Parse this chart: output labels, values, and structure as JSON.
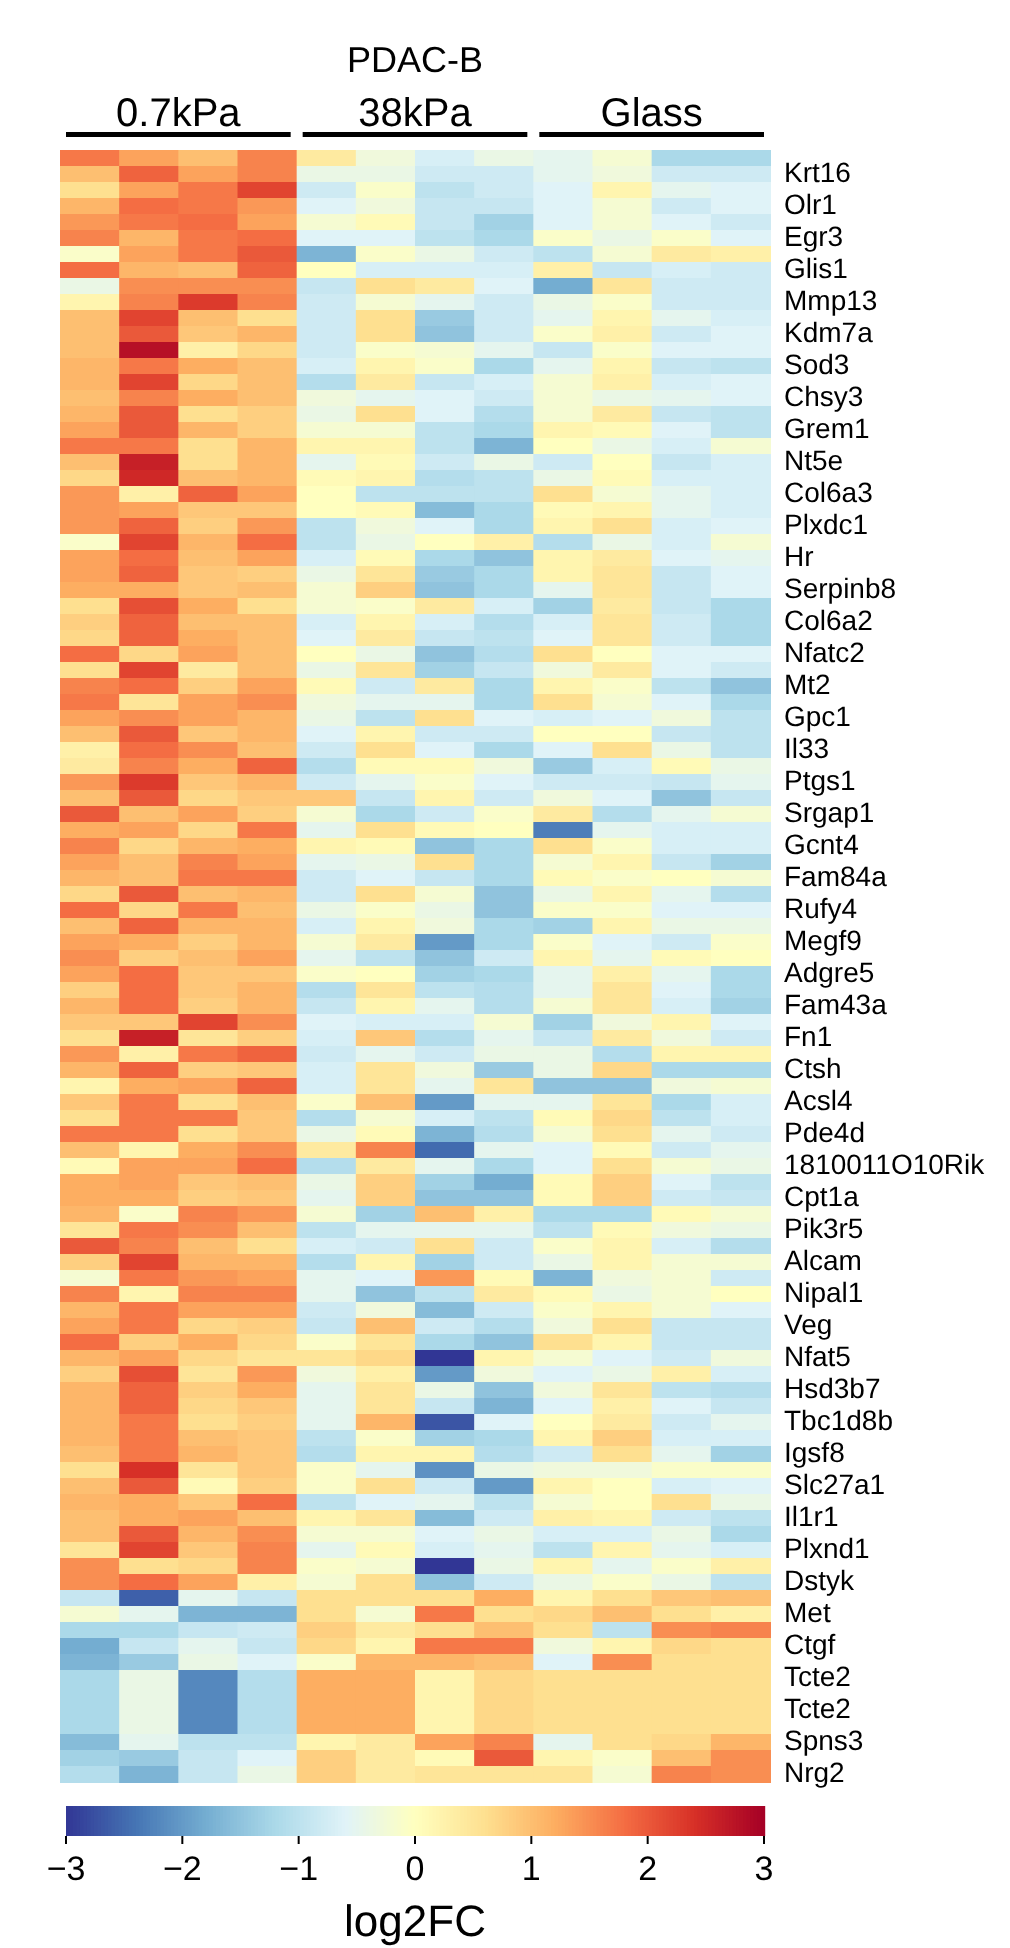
{
  "chart_data": {
    "type": "heatmap",
    "title": "PDAC-B",
    "clabel": "log2FC",
    "annotations": [
      "0.7kPa",
      "38kPa",
      "Glass"
    ],
    "categories": [
      null,
      null,
      null,
      null,
      null,
      null,
      null,
      null,
      null,
      null,
      null,
      null
    ],
    "y_categories": [
      null,
      "Krt16",
      null,
      "Olr1",
      null,
      "Egr3",
      null,
      "Glis1",
      null,
      "Mmp13",
      null,
      "Kdm7a",
      null,
      "Sod3",
      null,
      "Chsy3",
      null,
      "Grem1",
      null,
      "Nt5e",
      null,
      "Col6a3",
      null,
      "Plxdc1",
      null,
      "Hr",
      null,
      "Serpinb8",
      null,
      "Col6a2",
      null,
      "Nfatc2",
      null,
      "Mt2",
      null,
      "Gpc1",
      null,
      "Il33",
      null,
      "Ptgs1",
      null,
      "Srgap1",
      null,
      "Gcnt4",
      null,
      "Fam84a",
      null,
      "Rufy4",
      null,
      "Megf9",
      null,
      "Adgre5",
      null,
      "Fam43a",
      null,
      "Fn1",
      null,
      "Ctsh",
      null,
      "Acsl4",
      null,
      "Pde4d",
      null,
      "1810011O10Rik",
      null,
      "Cpt1a",
      null,
      "Pik3r5",
      null,
      "Alcam",
      null,
      "Nipal1",
      null,
      "Veg",
      null,
      "Nfat5",
      null,
      "Hsd3b7",
      null,
      "Tbc1d8b",
      null,
      "Igsf8",
      null,
      "Slc27a1",
      null,
      "Il1r1",
      null,
      "Plxnd1",
      null,
      "Dstyk",
      null,
      "Met",
      null,
      "Ctgf",
      null,
      "Tcte2",
      null,
      "Tcte2",
      null,
      "Spns3",
      null,
      "Nrg2"
    ],
    "clim": [
      -3,
      3
    ],
    "cticks": [
      -3,
      -2,
      -1,
      0,
      1,
      2,
      3
    ],
    "cells": [
      [
        1.7,
        1.3,
        1.0,
        1.6,
        0.4,
        -0.3,
        -0.7,
        -0.4,
        -0.5,
        -0.2,
        -1.2,
        -1.2
      ],
      [
        1.0,
        1.9,
        1.3,
        1.6,
        -0.4,
        -0.4,
        -0.8,
        -0.8,
        -0.5,
        -0.3,
        -0.8,
        -0.8
      ],
      [
        0.6,
        1.3,
        1.7,
        2.2,
        -0.8,
        -0.1,
        -1.0,
        -0.8,
        -0.6,
        0.2,
        -0.5,
        -0.6
      ],
      [
        1.1,
        1.8,
        1.7,
        1.4,
        -0.6,
        -0.3,
        -0.9,
        -0.9,
        -0.6,
        -0.2,
        -0.8,
        -0.6
      ],
      [
        1.4,
        1.7,
        1.8,
        1.3,
        -0.2,
        0.1,
        -0.9,
        -1.3,
        -0.6,
        -0.2,
        -0.6,
        -0.8
      ],
      [
        1.6,
        1.1,
        1.7,
        1.8,
        -0.6,
        -0.6,
        -1.0,
        -1.2,
        -0.1,
        -0.4,
        -0.1,
        -0.6
      ],
      [
        -0.1,
        1.3,
        1.7,
        2.0,
        -1.7,
        -0.1,
        -0.4,
        -0.8,
        -1.0,
        -0.2,
        0.4,
        0.3
      ],
      [
        1.8,
        1.1,
        1.0,
        1.9,
        0.0,
        -0.7,
        -0.7,
        -0.7,
        0.3,
        -0.9,
        -0.7,
        -0.8
      ],
      [
        -0.4,
        1.5,
        1.5,
        1.5,
        -0.9,
        0.6,
        0.4,
        -0.6,
        -1.8,
        0.5,
        -0.8,
        -0.8
      ],
      [
        0.2,
        1.6,
        2.3,
        1.6,
        -0.8,
        -0.2,
        -0.5,
        -0.8,
        -0.4,
        -0.1,
        -0.8,
        -0.8
      ],
      [
        1.0,
        2.2,
        1.0,
        0.6,
        -0.8,
        0.6,
        -1.4,
        -0.8,
        -0.5,
        0.2,
        -0.5,
        -0.7
      ],
      [
        1.0,
        2.0,
        0.9,
        1.1,
        -0.8,
        0.6,
        -1.5,
        -0.8,
        -0.1,
        0.3,
        -0.8,
        -0.6
      ],
      [
        1.0,
        2.8,
        0.3,
        0.7,
        -0.8,
        -0.1,
        -0.2,
        -0.5,
        -0.9,
        -0.1,
        -0.6,
        -0.6
      ],
      [
        1.1,
        1.7,
        1.2,
        1.0,
        -0.7,
        0.2,
        -0.1,
        -1.2,
        -0.5,
        0.2,
        -0.9,
        -1.0
      ],
      [
        1.1,
        2.2,
        0.7,
        1.0,
        -1.1,
        0.4,
        -0.9,
        -0.7,
        -0.2,
        0.3,
        -0.7,
        -0.6
      ],
      [
        1.0,
        1.6,
        1.2,
        1.0,
        -0.3,
        -0.5,
        -0.6,
        -0.8,
        -0.2,
        -0.4,
        -0.5,
        -0.6
      ],
      [
        1.1,
        2.0,
        0.6,
        0.8,
        -0.4,
        0.6,
        -0.6,
        -1.1,
        -0.2,
        0.4,
        -0.9,
        -1.0
      ],
      [
        1.3,
        2.0,
        1.1,
        0.8,
        -0.2,
        -0.2,
        -1.0,
        -1.2,
        0.2,
        0.1,
        -0.6,
        -1.0
      ],
      [
        1.7,
        1.7,
        0.6,
        1.1,
        0.2,
        0.2,
        -1.0,
        -1.7,
        0.0,
        -0.4,
        -0.7,
        -0.2
      ],
      [
        1.0,
        2.6,
        0.6,
        1.1,
        -0.5,
        0.1,
        -0.8,
        -0.4,
        -0.8,
        0.0,
        -0.9,
        -0.7
      ],
      [
        0.7,
        2.5,
        1.0,
        1.1,
        0.1,
        0.2,
        -1.1,
        -1.0,
        -0.4,
        0.1,
        -0.7,
        -0.7
      ],
      [
        1.4,
        0.3,
        1.9,
        1.3,
        0.0,
        -1.0,
        -1.0,
        -1.0,
        0.6,
        -0.2,
        -0.5,
        -0.7
      ],
      [
        1.4,
        1.3,
        0.9,
        0.9,
        0.0,
        0.1,
        -1.6,
        -1.2,
        0.1,
        0.2,
        -0.5,
        -0.7
      ],
      [
        1.4,
        1.9,
        0.8,
        1.4,
        -1.0,
        -0.3,
        -0.6,
        -1.2,
        0.2,
        0.6,
        -0.7,
        -0.6
      ],
      [
        -0.1,
        2.2,
        1.1,
        1.8,
        -1.0,
        -0.4,
        0.0,
        0.3,
        -1.1,
        -0.4,
        -0.7,
        -0.2
      ],
      [
        1.3,
        1.8,
        1.0,
        1.3,
        -0.7,
        0.1,
        -1.2,
        -1.5,
        0.2,
        0.4,
        -0.6,
        -0.5
      ],
      [
        1.3,
        1.9,
        0.9,
        0.8,
        -0.4,
        0.5,
        -1.4,
        -1.2,
        0.2,
        0.5,
        -0.9,
        -0.6
      ],
      [
        1.2,
        1.2,
        0.9,
        1.0,
        -0.2,
        0.8,
        -1.5,
        -1.2,
        -0.5,
        0.5,
        -0.9,
        -0.6
      ],
      [
        0.6,
        2.1,
        1.2,
        0.6,
        -0.2,
        -0.1,
        0.4,
        -0.7,
        -1.3,
        0.4,
        -0.9,
        -1.2
      ],
      [
        0.8,
        1.9,
        1.0,
        1.0,
        -0.7,
        0.2,
        -0.7,
        -1.1,
        -0.7,
        0.5,
        -0.8,
        -1.2
      ],
      [
        0.7,
        1.9,
        1.2,
        1.0,
        -0.6,
        0.4,
        -0.9,
        -1.0,
        -0.6,
        0.5,
        -0.8,
        -1.2
      ],
      [
        1.8,
        0.7,
        1.3,
        1.0,
        0.0,
        -0.4,
        -1.5,
        -1.1,
        0.6,
        0.0,
        -0.6,
        -0.6
      ],
      [
        0.6,
        2.2,
        0.4,
        1.0,
        -0.4,
        0.5,
        -1.3,
        -0.9,
        -0.3,
        0.4,
        -0.6,
        -0.8
      ],
      [
        1.6,
        1.8,
        0.8,
        1.3,
        0.1,
        -0.8,
        0.4,
        -1.2,
        0.2,
        -0.1,
        -1.0,
        -1.5
      ],
      [
        1.7,
        0.5,
        1.3,
        1.5,
        -0.3,
        -0.5,
        -0.5,
        -1.2,
        0.6,
        -0.2,
        -0.6,
        -1.2
      ],
      [
        1.3,
        1.5,
        1.3,
        1.1,
        -0.4,
        -1.0,
        0.6,
        -0.6,
        -0.7,
        -0.6,
        -0.3,
        -1.0
      ],
      [
        1.0,
        2.0,
        0.9,
        1.1,
        -0.6,
        0.2,
        -0.8,
        -0.8,
        0.0,
        0.0,
        -0.9,
        -1.0
      ],
      [
        0.3,
        1.8,
        1.5,
        1.0,
        -0.8,
        0.6,
        -0.6,
        -1.2,
        -0.6,
        0.6,
        -0.4,
        -1.0
      ],
      [
        0.4,
        1.6,
        1.2,
        1.9,
        -1.1,
        0.1,
        0.1,
        -0.3,
        -1.4,
        -0.7,
        0.1,
        -0.4
      ],
      [
        1.4,
        2.3,
        0.9,
        1.1,
        -0.8,
        -0.5,
        -0.1,
        -0.6,
        -0.8,
        -0.8,
        -0.9,
        -0.5
      ],
      [
        1.0,
        2.0,
        0.7,
        0.9,
        0.9,
        -0.9,
        0.2,
        -0.8,
        -0.3,
        -0.6,
        -1.5,
        -0.9
      ],
      [
        2.0,
        1.0,
        1.3,
        0.8,
        -0.2,
        -1.2,
        -0.8,
        -0.1,
        0.4,
        -1.1,
        -0.5,
        -0.2
      ],
      [
        1.2,
        1.3,
        0.7,
        1.7,
        -0.5,
        0.6,
        0.1,
        0.0,
        -2.3,
        -0.5,
        -0.7,
        -0.7
      ],
      [
        1.6,
        0.7,
        1.1,
        1.2,
        0.2,
        0.1,
        -1.5,
        -1.2,
        0.6,
        -0.1,
        -0.7,
        -0.7
      ],
      [
        1.3,
        1.0,
        1.6,
        1.3,
        -0.5,
        -0.4,
        0.6,
        -1.2,
        -0.2,
        0.2,
        -0.9,
        -1.3
      ],
      [
        1.1,
        1.0,
        1.7,
        1.7,
        -0.8,
        -0.6,
        -0.9,
        -1.2,
        0.1,
        -0.1,
        0.0,
        -0.2
      ],
      [
        0.7,
        2.0,
        1.0,
        1.1,
        -0.8,
        0.6,
        -0.2,
        -1.5,
        -0.4,
        0.2,
        -0.5,
        -1.1
      ],
      [
        1.8,
        0.7,
        1.7,
        1.0,
        -0.4,
        -0.1,
        -0.4,
        -1.5,
        -0.1,
        -0.1,
        -0.6,
        -0.6
      ],
      [
        1.0,
        1.9,
        1.1,
        1.1,
        -0.7,
        0.2,
        -0.3,
        -1.2,
        -1.3,
        0.2,
        -0.4,
        -0.4
      ],
      [
        1.3,
        1.2,
        0.8,
        1.1,
        -0.2,
        0.4,
        -2.0,
        -1.2,
        -0.1,
        -0.6,
        -0.8,
        -0.1
      ],
      [
        1.5,
        0.8,
        1.0,
        1.3,
        -0.5,
        -1.0,
        -1.5,
        -0.8,
        0.2,
        -0.5,
        0.1,
        0.0
      ],
      [
        1.3,
        1.8,
        0.9,
        0.9,
        -0.1,
        0.0,
        -1.3,
        -1.2,
        -0.5,
        0.3,
        -0.5,
        -1.2
      ],
      [
        0.8,
        1.8,
        0.9,
        1.1,
        -1.1,
        0.5,
        -1.0,
        -1.1,
        -0.5,
        0.5,
        -0.6,
        -1.2
      ],
      [
        1.1,
        1.8,
        0.8,
        1.1,
        -0.9,
        0.2,
        -0.5,
        -1.1,
        -0.2,
        0.5,
        -0.7,
        -1.3
      ],
      [
        0.9,
        0.9,
        2.2,
        1.5,
        -0.6,
        -0.7,
        -0.7,
        -0.2,
        -1.3,
        -0.3,
        0.2,
        -0.6
      ],
      [
        0.6,
        2.6,
        0.5,
        0.8,
        -0.7,
        0.9,
        -1.1,
        -0.5,
        -0.9,
        0.4,
        -0.3,
        -0.8
      ],
      [
        1.4,
        0.3,
        1.7,
        1.9,
        -0.8,
        -0.5,
        -0.8,
        -0.4,
        -0.4,
        -1.1,
        0.2,
        0.2
      ],
      [
        1.1,
        1.9,
        0.8,
        0.9,
        -0.7,
        0.5,
        -0.3,
        -1.4,
        -0.4,
        0.7,
        -1.2,
        -1.2
      ],
      [
        0.2,
        1.2,
        1.3,
        1.9,
        -0.7,
        0.5,
        -0.5,
        0.5,
        -1.5,
        -1.5,
        -0.3,
        -0.2
      ],
      [
        0.9,
        1.7,
        0.6,
        1.0,
        -0.1,
        1.0,
        -2.0,
        -0.5,
        -0.5,
        0.5,
        -1.2,
        -0.7
      ],
      [
        0.6,
        1.7,
        1.7,
        0.9,
        -1.1,
        -0.2,
        -0.7,
        -1.0,
        0.1,
        0.7,
        -1.0,
        -0.7
      ],
      [
        1.7,
        1.7,
        0.6,
        0.9,
        -0.4,
        0.1,
        -1.7,
        -1.1,
        -0.2,
        0.6,
        -0.5,
        -0.8
      ],
      [
        1.0,
        0.2,
        1.2,
        1.5,
        0.4,
        1.6,
        -2.5,
        -0.5,
        -0.6,
        0.1,
        -0.8,
        -0.5
      ],
      [
        0.1,
        1.3,
        1.3,
        1.8,
        -1.1,
        0.4,
        -0.5,
        -1.2,
        -0.6,
        0.6,
        -0.2,
        -0.4
      ],
      [
        1.2,
        1.3,
        0.9,
        1.0,
        -0.4,
        0.8,
        -1.3,
        -1.8,
        0.1,
        0.8,
        -0.6,
        -1.0
      ],
      [
        1.2,
        1.2,
        0.8,
        0.9,
        -0.5,
        0.8,
        -1.5,
        -1.5,
        0.1,
        0.8,
        -0.8,
        -0.9
      ],
      [
        1.1,
        -0.1,
        1.6,
        1.4,
        -0.2,
        -1.3,
        1.0,
        0.3,
        -1.2,
        -1.2,
        0.1,
        -0.2
      ],
      [
        0.5,
        1.7,
        1.5,
        1.0,
        -1.0,
        -0.5,
        -0.5,
        -0.5,
        -1.0,
        0.1,
        -0.3,
        -0.4
      ],
      [
        2.0,
        1.6,
        1.0,
        0.6,
        -0.7,
        -0.8,
        0.6,
        -0.8,
        -0.1,
        0.2,
        -0.7,
        -1.1
      ],
      [
        0.8,
        2.2,
        1.1,
        1.1,
        -1.1,
        0.2,
        -1.3,
        -0.8,
        -0.4,
        0.2,
        -0.2,
        -0.2
      ],
      [
        -0.2,
        1.7,
        1.4,
        1.3,
        -0.5,
        -0.6,
        1.4,
        0.1,
        -1.7,
        -0.3,
        -0.2,
        -0.8
      ],
      [
        1.6,
        0.2,
        1.6,
        1.6,
        -0.5,
        -1.5,
        -1.0,
        0.4,
        0.1,
        -0.4,
        -0.2,
        0.0
      ],
      [
        1.1,
        1.7,
        1.3,
        1.3,
        -0.8,
        -0.3,
        -1.6,
        -0.8,
        -0.1,
        0.2,
        -0.2,
        -0.6
      ],
      [
        1.3,
        1.7,
        0.7,
        0.8,
        -0.9,
        1.0,
        -0.8,
        -1.1,
        -0.3,
        0.6,
        -0.9,
        -0.9
      ],
      [
        1.8,
        0.8,
        1.2,
        0.7,
        -0.1,
        0.5,
        -1.2,
        -1.5,
        0.6,
        0.2,
        -0.9,
        -0.9
      ],
      [
        1.1,
        1.3,
        0.7,
        0.5,
        0.5,
        0.7,
        -3.0,
        0.2,
        -0.2,
        -0.6,
        -0.8,
        -0.3
      ],
      [
        0.8,
        2.1,
        0.5,
        1.4,
        -0.3,
        0.3,
        -2.0,
        -0.3,
        -0.6,
        -0.4,
        0.3,
        -0.7
      ],
      [
        1.1,
        1.9,
        0.8,
        1.2,
        -0.5,
        0.5,
        -0.4,
        -1.5,
        -0.3,
        0.5,
        -1.0,
        -1.1
      ],
      [
        1.1,
        1.9,
        0.7,
        0.9,
        -0.5,
        0.5,
        -0.9,
        -1.7,
        -0.6,
        0.3,
        -0.6,
        -0.9
      ],
      [
        1.1,
        1.7,
        0.6,
        0.8,
        -0.5,
        1.1,
        -2.7,
        -0.6,
        0.0,
        0.4,
        -0.8,
        -0.5
      ],
      [
        1.1,
        1.7,
        1.0,
        0.9,
        -1.0,
        -0.1,
        -1.3,
        -1.2,
        0.2,
        0.8,
        -0.7,
        -0.7
      ],
      [
        1.0,
        1.7,
        1.1,
        0.9,
        -1.1,
        0.2,
        0.2,
        -1.1,
        -0.8,
        0.6,
        -0.5,
        -1.3
      ],
      [
        0.6,
        2.4,
        0.5,
        0.9,
        -0.1,
        -0.5,
        -2.1,
        -0.4,
        -0.3,
        -0.3,
        -0.1,
        -0.1
      ],
      [
        1.0,
        2.0,
        0.1,
        0.8,
        -0.1,
        0.6,
        -0.8,
        -2.0,
        0.2,
        0.0,
        -0.7,
        -0.6
      ],
      [
        1.1,
        1.2,
        0.9,
        1.8,
        -1.0,
        -0.6,
        -0.5,
        -1.0,
        -0.2,
        0.0,
        0.6,
        -0.4
      ],
      [
        1.0,
        1.2,
        1.3,
        1.0,
        0.2,
        0.5,
        -1.6,
        -0.8,
        0.3,
        0.2,
        -0.8,
        -1.0
      ],
      [
        1.0,
        2.0,
        1.1,
        1.5,
        -0.2,
        -0.2,
        -0.6,
        -0.4,
        -0.7,
        -0.7,
        -0.4,
        -1.2
      ],
      [
        0.5,
        2.2,
        0.9,
        1.6,
        -0.5,
        0.1,
        -0.7,
        -0.5,
        -1.0,
        0.2,
        -0.5,
        -0.7
      ],
      [
        1.5,
        0.6,
        0.7,
        1.6,
        -0.1,
        -0.2,
        -3.0,
        -0.4,
        0.2,
        -0.5,
        -0.1,
        0.3
      ],
      [
        1.5,
        1.8,
        1.3,
        0.3,
        -0.2,
        0.6,
        -1.5,
        -0.8,
        -0.4,
        -0.1,
        -0.4,
        -1.0
      ],
      [
        -0.9,
        -2.6,
        -0.5,
        -0.9,
        0.6,
        0.6,
        0.6,
        1.2,
        0.2,
        0.6,
        0.9,
        1.0
      ],
      [
        -0.2,
        -0.5,
        -1.7,
        -1.7,
        0.6,
        -0.2,
        1.7,
        0.6,
        0.7,
        1.0,
        0.6,
        0.3
      ],
      [
        -1.2,
        -1.2,
        -0.9,
        -0.8,
        0.8,
        0.4,
        0.6,
        1.0,
        0.6,
        -1.0,
        1.5,
        1.6
      ],
      [
        -1.8,
        -0.9,
        -0.5,
        -0.9,
        0.7,
        0.2,
        1.7,
        1.7,
        -0.3,
        0.2,
        0.7,
        0.6
      ],
      [
        -1.7,
        -1.4,
        -0.4,
        -0.6,
        -0.1,
        1.1,
        1.1,
        1.0,
        -0.6,
        1.5,
        0.6,
        0.6
      ],
      [
        -1.2,
        -0.4,
        -2.2,
        -1.1,
        1.2,
        1.2,
        0.2,
        0.7,
        0.6,
        0.6,
        0.6,
        0.6
      ],
      [
        -1.2,
        -0.4,
        -2.2,
        -1.1,
        1.2,
        1.2,
        0.2,
        0.7,
        0.6,
        0.6,
        0.6,
        0.6
      ],
      [
        -1.2,
        -0.4,
        -2.2,
        -1.1,
        1.2,
        1.2,
        0.2,
        0.7,
        0.6,
        0.6,
        0.6,
        0.6
      ],
      [
        -1.2,
        -0.4,
        -2.2,
        -1.1,
        1.2,
        1.2,
        0.2,
        0.7,
        0.6,
        0.6,
        0.6,
        0.6
      ],
      [
        -1.6,
        -0.5,
        -1.0,
        -1.0,
        0.2,
        0.4,
        1.3,
        1.6,
        -0.5,
        0.6,
        0.7,
        1.1
      ],
      [
        -1.3,
        -1.4,
        -0.9,
        -0.6,
        0.8,
        0.4,
        0.1,
        2.0,
        0.2,
        -0.1,
        1.0,
        1.5
      ],
      [
        -1.1,
        -1.7,
        -0.9,
        -0.4,
        0.8,
        0.4,
        0.5,
        0.5,
        0.5,
        -0.2,
        1.6,
        1.5
      ]
    ]
  }
}
